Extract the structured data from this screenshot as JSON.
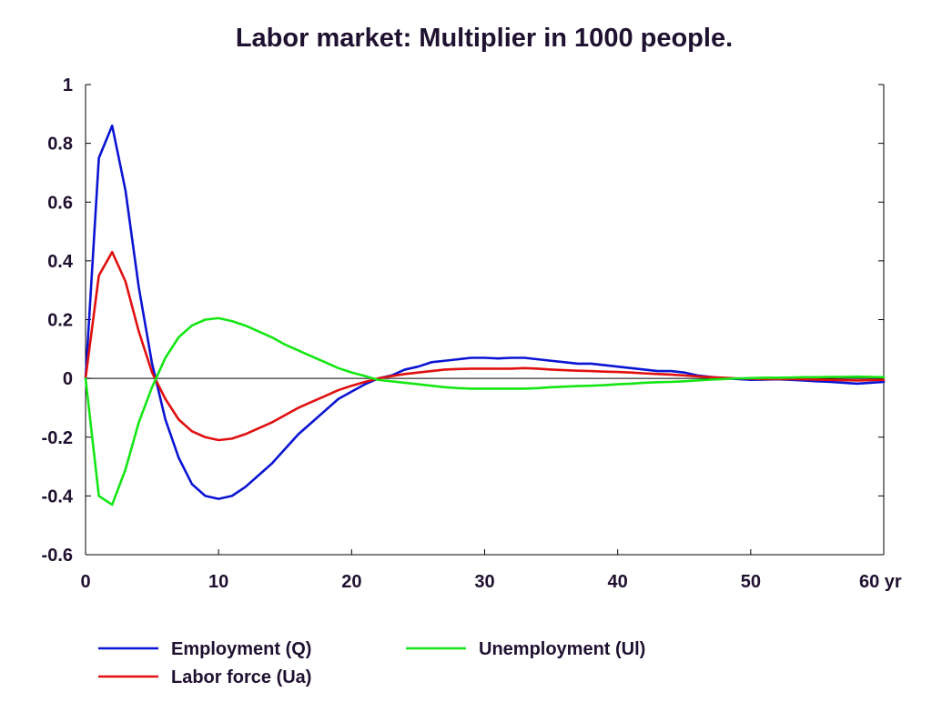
{
  "chart_data": {
    "type": "line",
    "title": "Labor market: Multiplier in 1000 people.",
    "xlabel": "",
    "ylabel": "",
    "xlim": [
      0,
      60
    ],
    "ylim": [
      -0.6,
      1
    ],
    "x_ticks": [
      0,
      10,
      20,
      30,
      40,
      50,
      60
    ],
    "x_tick_labels": [
      "0",
      "10",
      "20",
      "30",
      "40",
      "50",
      "60 yr"
    ],
    "y_ticks": [
      -0.6,
      -0.4,
      -0.2,
      0,
      0.2,
      0.4,
      0.6,
      0.8,
      1
    ],
    "y_tick_labels": [
      "-0.6",
      "-0.4",
      "-0.2",
      "0",
      "0.2",
      "0.4",
      "0.6",
      "0.8",
      "1"
    ],
    "grid": false,
    "zero_line": true,
    "legend_position": "bottom",
    "series": [
      {
        "name": "Employment (Q)",
        "color": "#0a14d2",
        "x": [
          0,
          1,
          2,
          3,
          4,
          5,
          6,
          7,
          8,
          9,
          10,
          11,
          12,
          13,
          14,
          15,
          16,
          17,
          18,
          19,
          20,
          21,
          22,
          23,
          24,
          25,
          26,
          27,
          28,
          29,
          30,
          31,
          32,
          33,
          34,
          35,
          36,
          37,
          38,
          39,
          40,
          41,
          42,
          43,
          44,
          45,
          46,
          47,
          48,
          49,
          50,
          51,
          52,
          53,
          54,
          55,
          56,
          57,
          58,
          59,
          60
        ],
        "y": [
          0,
          0.75,
          0.86,
          0.64,
          0.31,
          0.05,
          -0.14,
          -0.27,
          -0.36,
          -0.4,
          -0.41,
          -0.4,
          -0.37,
          -0.33,
          -0.29,
          -0.24,
          -0.19,
          -0.15,
          -0.11,
          -0.07,
          -0.045,
          -0.02,
          0,
          0.01,
          0.03,
          0.04,
          0.055,
          0.06,
          0.065,
          0.07,
          0.07,
          0.068,
          0.07,
          0.07,
          0.065,
          0.06,
          0.055,
          0.05,
          0.05,
          0.045,
          0.04,
          0.035,
          0.03,
          0.025,
          0.025,
          0.02,
          0.01,
          0.005,
          0,
          -0.002,
          -0.005,
          -0.004,
          -0.003,
          -0.005,
          -0.007,
          -0.01,
          -0.012,
          -0.015,
          -0.018,
          -0.015,
          -0.012
        ]
      },
      {
        "name": "Labor force (Ua)",
        "color": "#e01010",
        "x": [
          0,
          1,
          2,
          3,
          4,
          5,
          6,
          7,
          8,
          9,
          10,
          11,
          12,
          13,
          14,
          15,
          16,
          17,
          18,
          19,
          20,
          21,
          22,
          23,
          24,
          25,
          26,
          27,
          28,
          29,
          30,
          31,
          32,
          33,
          34,
          35,
          36,
          37,
          38,
          39,
          40,
          41,
          42,
          43,
          44,
          45,
          46,
          47,
          48,
          49,
          50,
          51,
          52,
          53,
          54,
          55,
          56,
          57,
          58,
          59,
          60
        ],
        "y": [
          0,
          0.35,
          0.43,
          0.33,
          0.16,
          0.02,
          -0.07,
          -0.14,
          -0.18,
          -0.2,
          -0.21,
          -0.205,
          -0.19,
          -0.17,
          -0.15,
          -0.125,
          -0.1,
          -0.08,
          -0.06,
          -0.04,
          -0.025,
          -0.012,
          0,
          0.008,
          0.015,
          0.02,
          0.025,
          0.03,
          0.032,
          0.033,
          0.033,
          0.033,
          0.033,
          0.035,
          0.033,
          0.03,
          0.028,
          0.026,
          0.025,
          0.023,
          0.022,
          0.02,
          0.017,
          0.015,
          0.013,
          0.01,
          0.007,
          0.004,
          0.002,
          0,
          -0.001,
          -0.002,
          -0.002,
          -0.002,
          -0.003,
          -0.004,
          -0.005,
          -0.006,
          -0.007,
          -0.006,
          -0.005
        ]
      },
      {
        "name": "Unemployment (Ul)",
        "color": "#14e614",
        "x": [
          0,
          1,
          2,
          3,
          4,
          5,
          6,
          7,
          8,
          9,
          10,
          11,
          12,
          13,
          14,
          15,
          16,
          17,
          18,
          19,
          20,
          21,
          22,
          23,
          24,
          25,
          26,
          27,
          28,
          29,
          30,
          31,
          32,
          33,
          34,
          35,
          36,
          37,
          38,
          39,
          40,
          41,
          42,
          43,
          44,
          45,
          46,
          47,
          48,
          49,
          50,
          51,
          52,
          53,
          54,
          55,
          56,
          57,
          58,
          59,
          60
        ],
        "y": [
          0,
          -0.4,
          -0.43,
          -0.31,
          -0.15,
          -0.03,
          0.07,
          0.14,
          0.18,
          0.2,
          0.205,
          0.195,
          0.18,
          0.16,
          0.14,
          0.115,
          0.095,
          0.075,
          0.055,
          0.035,
          0.02,
          0.008,
          -0.005,
          -0.01,
          -0.015,
          -0.02,
          -0.025,
          -0.03,
          -0.033,
          -0.035,
          -0.035,
          -0.035,
          -0.035,
          -0.035,
          -0.033,
          -0.03,
          -0.028,
          -0.026,
          -0.025,
          -0.023,
          -0.02,
          -0.018,
          -0.015,
          -0.013,
          -0.012,
          -0.01,
          -0.007,
          -0.004,
          -0.002,
          0,
          0.001,
          0.002,
          0.002,
          0.003,
          0.004,
          0.004,
          0.005,
          0.005,
          0.006,
          0.005,
          0.004
        ]
      }
    ]
  }
}
